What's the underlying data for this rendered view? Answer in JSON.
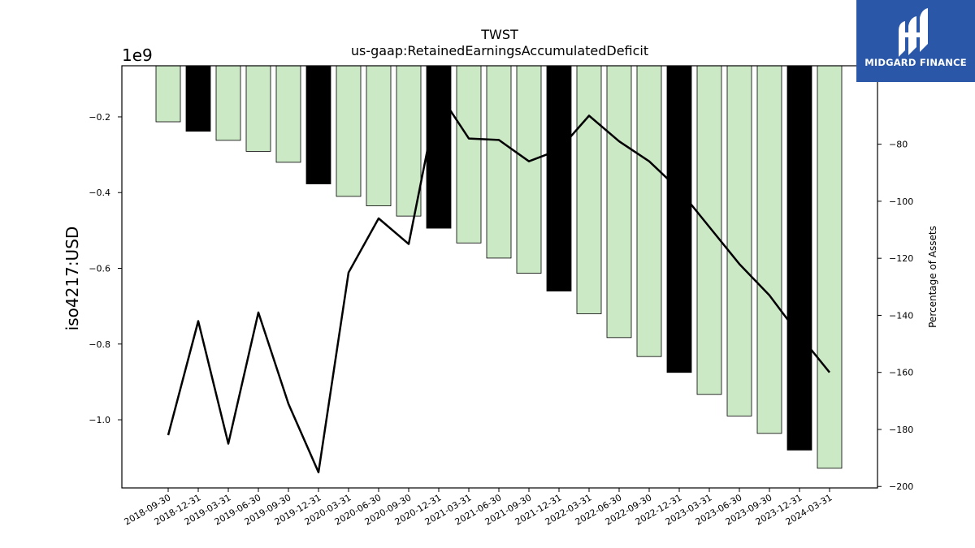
{
  "chart_data": {
    "type": "bar",
    "title": "TWST",
    "subtitle": "us-gaap:RetainedEarningsAccumulatedDeficit",
    "ylabel": "iso4217:USD",
    "y_offset_label": "1e9",
    "y2label": "Percentage of Assets",
    "categories": [
      "2018-09-30",
      "2018-12-31",
      "2019-03-31",
      "2019-06-30",
      "2019-09-30",
      "2019-12-31",
      "2020-03-31",
      "2020-06-30",
      "2020-09-30",
      "2020-12-31",
      "2021-03-31",
      "2021-06-30",
      "2021-09-30",
      "2021-12-31",
      "2022-03-31",
      "2022-06-30",
      "2022-09-30",
      "2022-12-31",
      "2023-03-31",
      "2023-06-30",
      "2023-09-30",
      "2023-12-31",
      "2024-03-31"
    ],
    "series": [
      {
        "values": [
          -0.213,
          -0.238,
          -0.262,
          -0.291,
          -0.32,
          -0.377,
          -0.41,
          -0.435,
          -0.462,
          -0.494,
          -0.533,
          -0.573,
          -0.613,
          -0.66,
          -0.72,
          -0.783,
          -0.833,
          -0.875,
          -0.933,
          -0.99,
          -1.036,
          -1.08,
          -1.128
        ],
        "annual": [
          false,
          true,
          false,
          false,
          false,
          true,
          false,
          false,
          false,
          true,
          false,
          false,
          false,
          true,
          false,
          false,
          false,
          true,
          false,
          false,
          false,
          true,
          false
        ]
      },
      {
        "axis": "right",
        "values": [
          -182,
          -142,
          -185,
          -139,
          -171,
          -195,
          -125,
          -106,
          -115,
          -62,
          -78,
          -78.5,
          -86,
          -82,
          -70,
          -79,
          -86,
          -96,
          -109,
          -122,
          -133,
          -147,
          -160
        ]
      }
    ],
    "ylim": [
      -1.18,
      -0.065
    ],
    "yticks": [
      -0.2,
      -0.4,
      -0.6,
      -0.8,
      -1.0
    ],
    "ytick_labels": [
      "−0.2",
      "−0.4",
      "−0.6",
      "−0.8",
      "−1.0"
    ],
    "y2lim": [
      -200.5,
      -52.5
    ],
    "y2ticks": [
      -80,
      -100,
      -120,
      -140,
      -160,
      -180,
      -200
    ],
    "y2tick_labels": [
      "−80",
      "−100",
      "−120",
      "−140",
      "−160",
      "−180",
      "−200"
    ],
    "colors": {
      "quarterly": "#cce9c6",
      "annual": "#000000",
      "line": "#000000",
      "edge": "#000000"
    },
    "grid": false
  },
  "logo": {
    "text": "MIDGARD FINANCE",
    "bg": "#2a57a8"
  }
}
